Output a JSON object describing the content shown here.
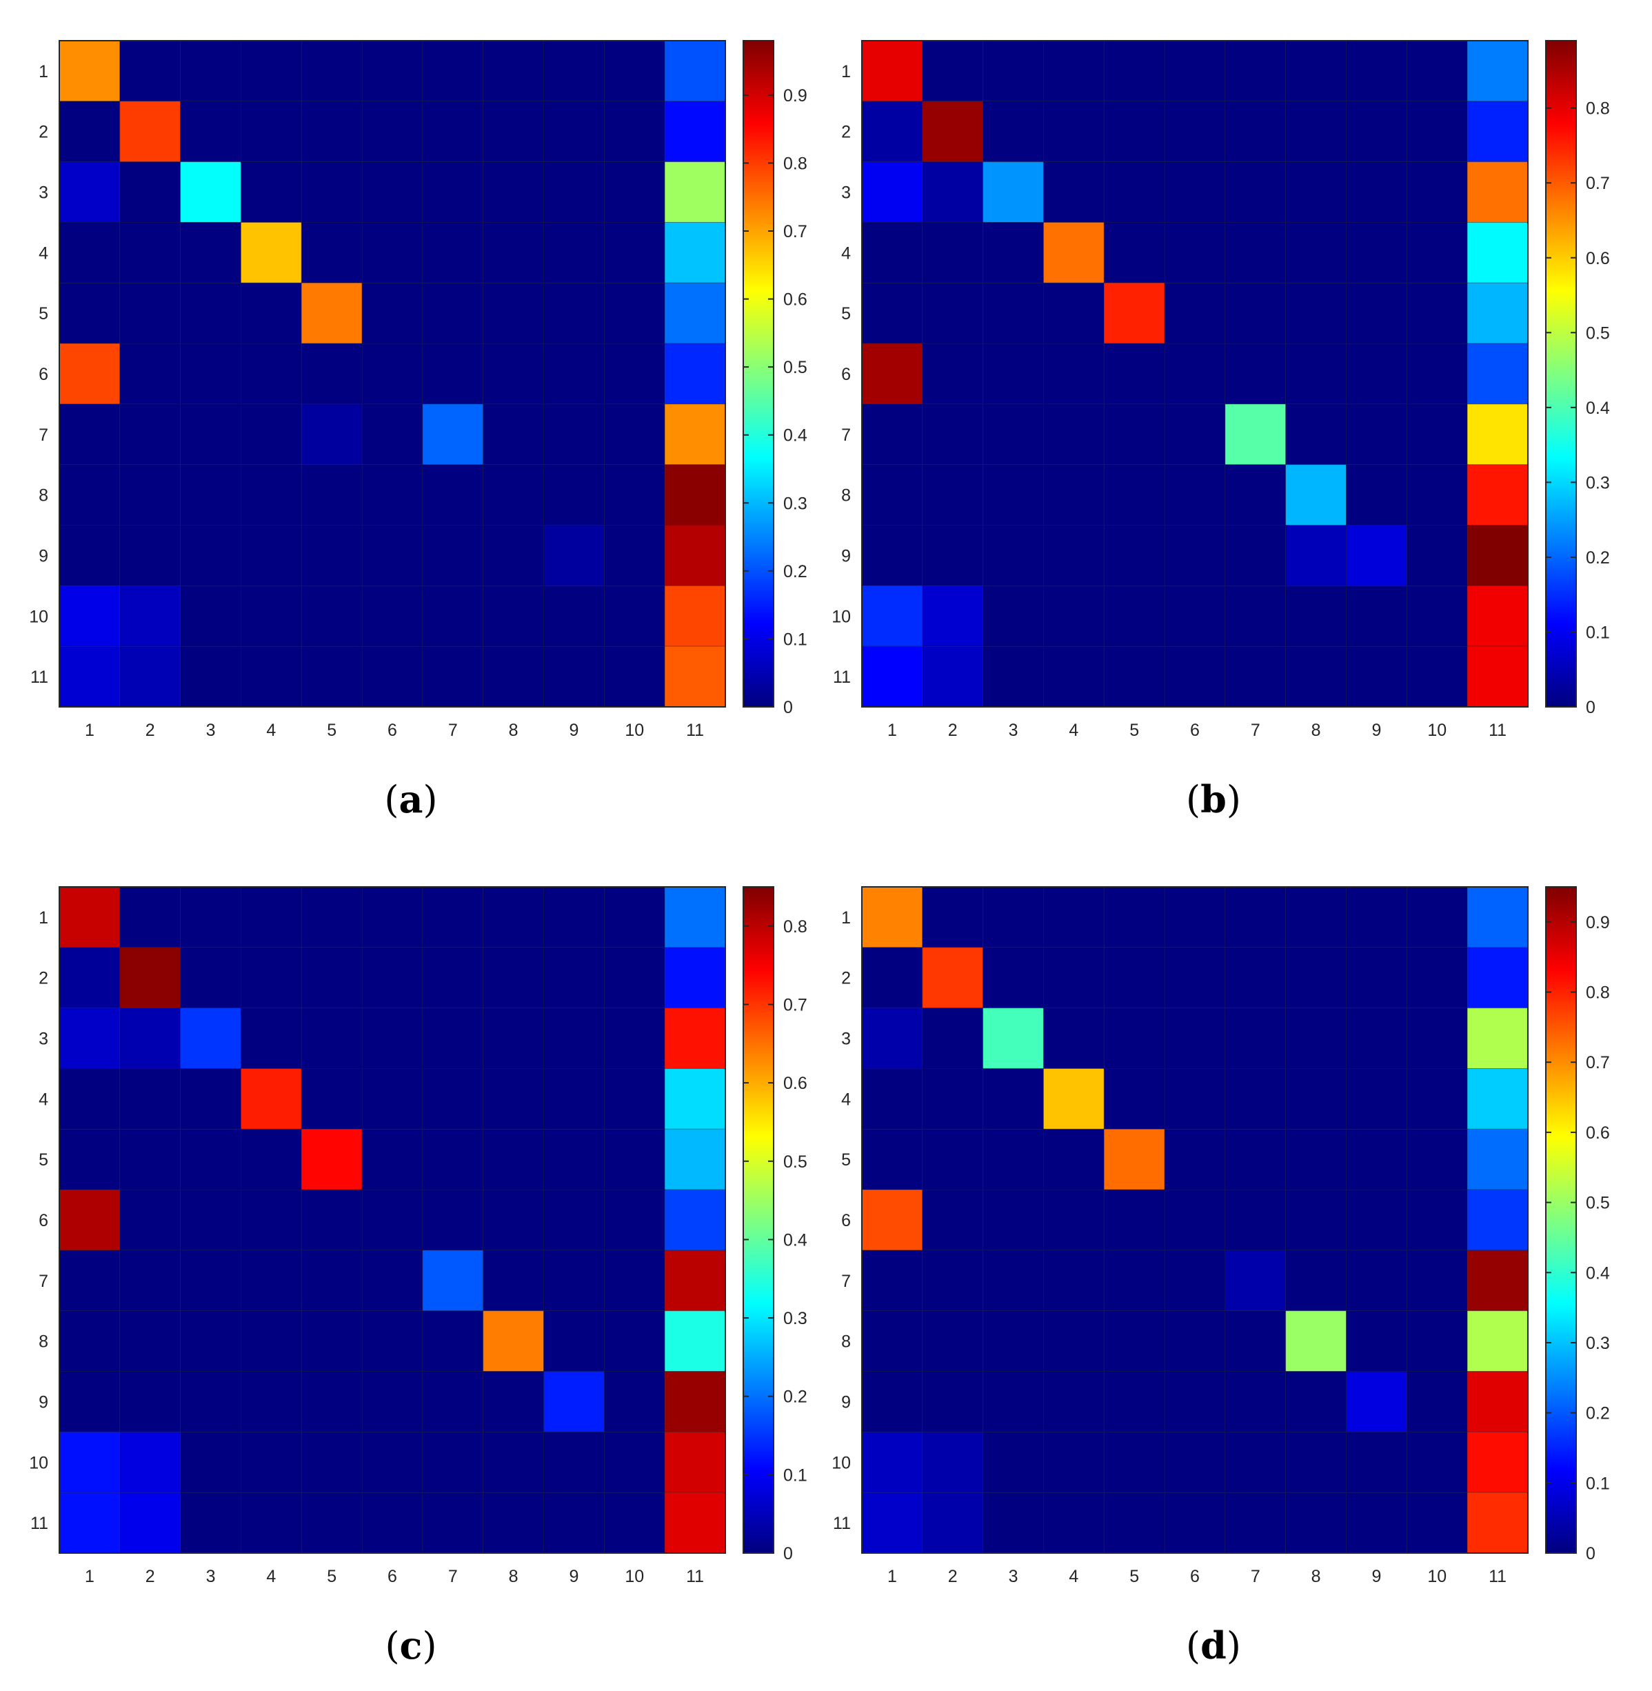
{
  "chart_data": [
    {
      "type": "heatmap",
      "panel_label": "(a)",
      "panel_letter": "a",
      "x_categories": [
        "1",
        "2",
        "3",
        "4",
        "5",
        "6",
        "7",
        "8",
        "9",
        "10",
        "11"
      ],
      "y_categories": [
        "1",
        "2",
        "3",
        "4",
        "5",
        "6",
        "7",
        "8",
        "9",
        "10",
        "11"
      ],
      "colorscale": "jet",
      "colorbar": {
        "range": [
          0,
          0.98
        ],
        "ticks": [
          0,
          0.1,
          0.2,
          0.3,
          0.4,
          0.5,
          0.6,
          0.7,
          0.8,
          0.9
        ]
      },
      "values": [
        [
          0.72,
          0,
          0,
          0,
          0,
          0,
          0,
          0,
          0,
          0,
          0.2
        ],
        [
          0,
          0.8,
          0,
          0,
          0,
          0,
          0,
          0,
          0,
          0,
          0.13
        ],
        [
          0.07,
          0,
          0.37,
          0,
          0,
          0,
          0,
          0,
          0,
          0,
          0.52
        ],
        [
          0,
          0,
          0,
          0.67,
          0,
          0,
          0,
          0,
          0,
          0,
          0.31
        ],
        [
          0,
          0,
          0,
          0,
          0.74,
          0,
          0,
          0,
          0,
          0,
          0.23
        ],
        [
          0.79,
          0,
          0,
          0,
          0,
          0,
          0,
          0,
          0,
          0,
          0.16
        ],
        [
          0,
          0,
          0,
          0,
          0.03,
          0,
          0.22,
          0,
          0,
          0,
          0.72
        ],
        [
          0,
          0,
          0,
          0,
          0,
          0,
          0,
          0,
          0,
          0,
          0.97
        ],
        [
          0,
          0,
          0,
          0,
          0,
          0,
          0,
          0,
          0.03,
          0,
          0.93
        ],
        [
          0.1,
          0.06,
          0,
          0,
          0,
          0,
          0,
          0,
          0,
          0,
          0.79
        ],
        [
          0.08,
          0.05,
          0,
          0,
          0,
          0,
          0,
          0,
          0,
          0,
          0.77
        ]
      ]
    },
    {
      "type": "heatmap",
      "panel_label": "(b)",
      "panel_letter": "b",
      "x_categories": [
        "1",
        "2",
        "3",
        "4",
        "5",
        "6",
        "7",
        "8",
        "9",
        "10",
        "11"
      ],
      "y_categories": [
        "1",
        "2",
        "3",
        "4",
        "5",
        "6",
        "7",
        "8",
        "9",
        "10",
        "11"
      ],
      "colorscale": "jet",
      "colorbar": {
        "range": [
          0,
          0.89
        ],
        "ticks": [
          0,
          0.1,
          0.2,
          0.3,
          0.4,
          0.5,
          0.6,
          0.7,
          0.8
        ]
      },
      "values": [
        [
          0.8,
          0,
          0,
          0,
          0,
          0,
          0,
          0,
          0,
          0,
          0.22
        ],
        [
          0.03,
          0.87,
          0,
          0,
          0,
          0,
          0,
          0,
          0,
          0,
          0.14
        ],
        [
          0.1,
          0.03,
          0.24,
          0,
          0,
          0,
          0,
          0,
          0,
          0,
          0.68
        ],
        [
          0,
          0,
          0,
          0.68,
          0,
          0,
          0,
          0,
          0,
          0,
          0.33
        ],
        [
          0,
          0,
          0,
          0,
          0.75,
          0,
          0,
          0,
          0,
          0,
          0.27
        ],
        [
          0.86,
          0,
          0,
          0,
          0,
          0,
          0,
          0,
          0,
          0,
          0.18
        ],
        [
          0,
          0,
          0,
          0,
          0,
          0,
          0.41,
          0,
          0,
          0,
          0.58
        ],
        [
          0,
          0,
          0,
          0,
          0,
          0,
          0,
          0.27,
          0,
          0,
          0.76
        ],
        [
          0,
          0,
          0,
          0,
          0,
          0,
          0,
          0.05,
          0.08,
          0,
          0.89
        ],
        [
          0.15,
          0.07,
          0,
          0,
          0,
          0,
          0,
          0,
          0,
          0,
          0.79
        ],
        [
          0.11,
          0.06,
          0,
          0,
          0,
          0,
          0,
          0,
          0,
          0,
          0.79
        ]
      ]
    },
    {
      "type": "heatmap",
      "panel_label": "(c)",
      "panel_letter": "c",
      "x_categories": [
        "1",
        "2",
        "3",
        "4",
        "5",
        "6",
        "7",
        "8",
        "9",
        "10",
        "11"
      ],
      "y_categories": [
        "1",
        "2",
        "3",
        "4",
        "5",
        "6",
        "7",
        "8",
        "9",
        "10",
        "11"
      ],
      "colorscale": "jet",
      "colorbar": {
        "range": [
          0,
          0.85
        ],
        "ticks": [
          0,
          0.1,
          0.2,
          0.3,
          0.4,
          0.5,
          0.6,
          0.7,
          0.8
        ]
      },
      "values": [
        [
          0.79,
          0,
          0,
          0,
          0,
          0,
          0,
          0,
          0,
          0,
          0.2
        ],
        [
          0.02,
          0.84,
          0,
          0,
          0,
          0,
          0,
          0,
          0,
          0,
          0.12
        ],
        [
          0.06,
          0.04,
          0.15,
          0,
          0,
          0,
          0,
          0,
          0,
          0,
          0.73
        ],
        [
          0,
          0,
          0,
          0.72,
          0,
          0,
          0,
          0,
          0,
          0,
          0.29
        ],
        [
          0,
          0,
          0,
          0,
          0.74,
          0,
          0,
          0,
          0,
          0,
          0.26
        ],
        [
          0.81,
          0,
          0,
          0,
          0,
          0,
          0,
          0,
          0,
          0,
          0.16
        ],
        [
          0,
          0,
          0,
          0,
          0,
          0,
          0.18,
          0,
          0,
          0,
          0.8
        ],
        [
          0,
          0,
          0,
          0,
          0,
          0,
          0,
          0.64,
          0,
          0,
          0.34
        ],
        [
          0,
          0,
          0,
          0,
          0,
          0,
          0,
          0,
          0.13,
          0,
          0.83
        ],
        [
          0.12,
          0.08,
          0,
          0,
          0,
          0,
          0,
          0,
          0,
          0,
          0.78
        ],
        [
          0.12,
          0.09,
          0,
          0,
          0,
          0,
          0,
          0,
          0,
          0,
          0.77
        ]
      ]
    },
    {
      "type": "heatmap",
      "panel_label": "(d)",
      "panel_letter": "d",
      "x_categories": [
        "1",
        "2",
        "3",
        "4",
        "5",
        "6",
        "7",
        "8",
        "9",
        "10",
        "11"
      ],
      "y_categories": [
        "1",
        "2",
        "3",
        "4",
        "5",
        "6",
        "7",
        "8",
        "9",
        "10",
        "11"
      ],
      "colorscale": "jet",
      "colorbar": {
        "range": [
          0,
          0.95
        ],
        "ticks": [
          0,
          0.1,
          0.2,
          0.3,
          0.4,
          0.5,
          0.6,
          0.7,
          0.8,
          0.9
        ]
      },
      "values": [
        [
          0.71,
          0,
          0,
          0,
          0,
          0,
          0,
          0,
          0,
          0,
          0.21
        ],
        [
          0,
          0.78,
          0,
          0,
          0,
          0,
          0,
          0,
          0,
          0,
          0.14
        ],
        [
          0.04,
          0,
          0.42,
          0,
          0,
          0,
          0,
          0,
          0,
          0,
          0.52
        ],
        [
          0,
          0,
          0,
          0.65,
          0,
          0,
          0,
          0,
          0,
          0,
          0.31
        ],
        [
          0,
          0,
          0,
          0,
          0.73,
          0,
          0,
          0,
          0,
          0,
          0.22
        ],
        [
          0.76,
          0,
          0,
          0,
          0,
          0,
          0,
          0,
          0,
          0,
          0.17
        ],
        [
          0,
          0,
          0,
          0,
          0,
          0,
          0.04,
          0,
          0,
          0,
          0.93
        ],
        [
          0,
          0,
          0,
          0,
          0,
          0,
          0,
          0.5,
          0,
          0,
          0.52
        ],
        [
          0,
          0,
          0,
          0,
          0,
          0,
          0,
          0,
          0.09,
          0,
          0.86
        ],
        [
          0.06,
          0.04,
          0,
          0,
          0,
          0,
          0,
          0,
          0,
          0,
          0.82
        ],
        [
          0.07,
          0.04,
          0,
          0,
          0,
          0,
          0,
          0,
          0,
          0,
          0.79
        ]
      ]
    }
  ]
}
